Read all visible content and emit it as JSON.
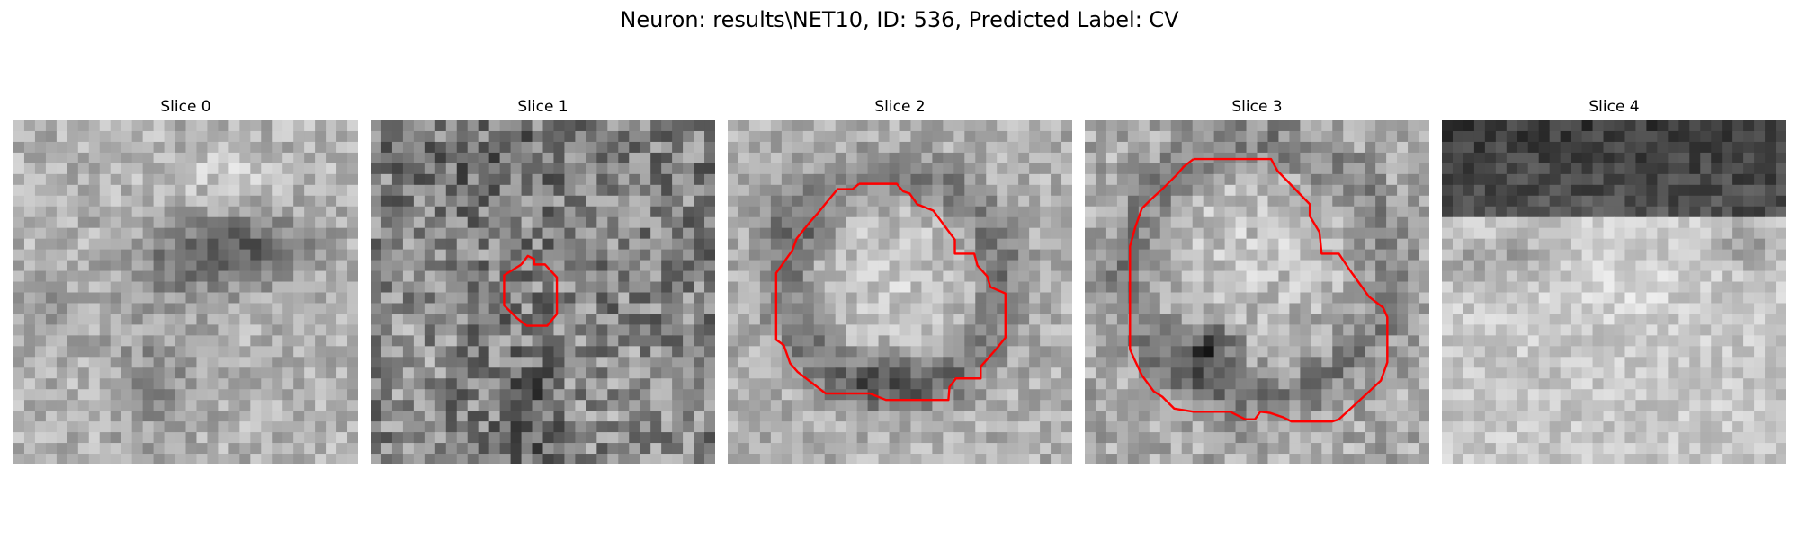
{
  "figure": {
    "title": "Neuron: results\\NET10, ID: 536, Predicted Label: CV",
    "contour_color": "#ff0000",
    "colormap": "gray",
    "grid": "32x32",
    "slices": [
      {
        "label": "Slice 0",
        "has_contour": false
      },
      {
        "label": "Slice 1",
        "has_contour": true
      },
      {
        "label": "Slice 2",
        "has_contour": true
      },
      {
        "label": "Slice 3",
        "has_contour": true
      },
      {
        "label": "Slice 4",
        "has_contour": false
      }
    ]
  }
}
